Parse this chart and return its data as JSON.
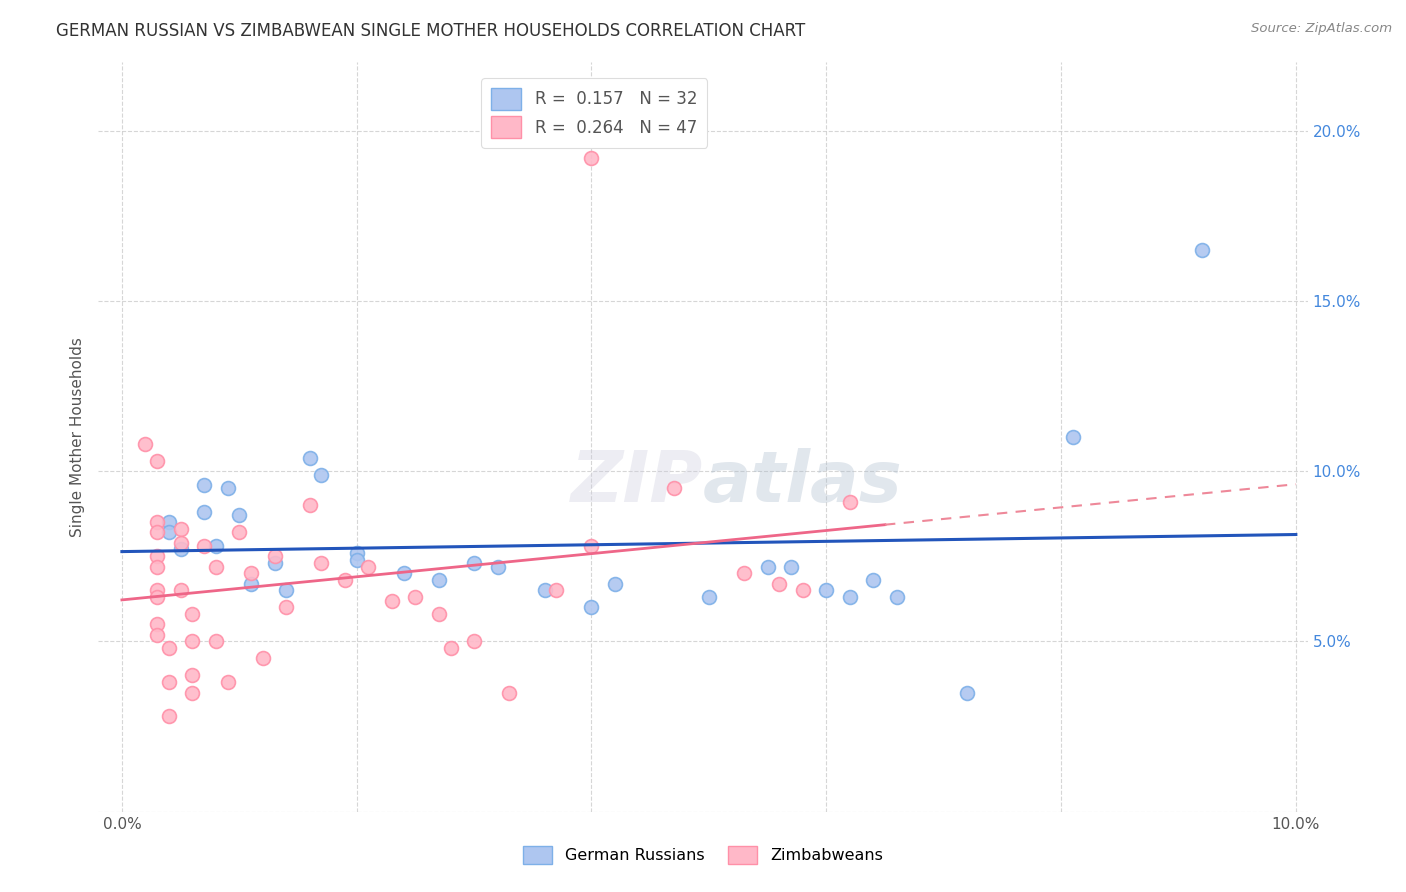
{
  "title": "GERMAN RUSSIAN VS ZIMBABWEAN SINGLE MOTHER HOUSEHOLDS CORRELATION CHART",
  "source": "Source: ZipAtlas.com",
  "ylabel": "Single Mother Households",
  "background_color": "#ffffff",
  "grid_color": "#cccccc",
  "watermark_text": "ZIPatlas",
  "blue_scatter_face": "#AEC6F0",
  "blue_scatter_edge": "#7EB0E8",
  "pink_scatter_face": "#FFB8C8",
  "pink_scatter_edge": "#FF90A8",
  "blue_line_color": "#2255BB",
  "pink_solid_color": "#EE6688",
  "pink_dash_color": "#EE8899",
  "legend_r_blue": "0.157",
  "legend_n_blue": "32",
  "legend_r_pink": "0.264",
  "legend_n_pink": "47",
  "blue_points": [
    [
      0.004,
      0.085
    ],
    [
      0.004,
      0.082
    ],
    [
      0.005,
      0.077
    ],
    [
      0.007,
      0.096
    ],
    [
      0.007,
      0.088
    ],
    [
      0.008,
      0.078
    ],
    [
      0.009,
      0.095
    ],
    [
      0.01,
      0.087
    ],
    [
      0.011,
      0.067
    ],
    [
      0.013,
      0.073
    ],
    [
      0.014,
      0.065
    ],
    [
      0.016,
      0.104
    ],
    [
      0.017,
      0.099
    ],
    [
      0.02,
      0.076
    ],
    [
      0.02,
      0.074
    ],
    [
      0.024,
      0.07
    ],
    [
      0.027,
      0.068
    ],
    [
      0.03,
      0.073
    ],
    [
      0.032,
      0.072
    ],
    [
      0.036,
      0.065
    ],
    [
      0.04,
      0.06
    ],
    [
      0.042,
      0.067
    ],
    [
      0.05,
      0.063
    ],
    [
      0.055,
      0.072
    ],
    [
      0.057,
      0.072
    ],
    [
      0.06,
      0.065
    ],
    [
      0.062,
      0.063
    ],
    [
      0.064,
      0.068
    ],
    [
      0.066,
      0.063
    ],
    [
      0.072,
      0.035
    ],
    [
      0.081,
      0.11
    ],
    [
      0.092,
      0.165
    ]
  ],
  "pink_points": [
    [
      0.002,
      0.108
    ],
    [
      0.003,
      0.103
    ],
    [
      0.003,
      0.085
    ],
    [
      0.003,
      0.082
    ],
    [
      0.003,
      0.075
    ],
    [
      0.003,
      0.072
    ],
    [
      0.003,
      0.065
    ],
    [
      0.003,
      0.063
    ],
    [
      0.003,
      0.055
    ],
    [
      0.003,
      0.052
    ],
    [
      0.004,
      0.048
    ],
    [
      0.004,
      0.038
    ],
    [
      0.004,
      0.028
    ],
    [
      0.005,
      0.083
    ],
    [
      0.005,
      0.079
    ],
    [
      0.005,
      0.065
    ],
    [
      0.006,
      0.058
    ],
    [
      0.006,
      0.05
    ],
    [
      0.006,
      0.04
    ],
    [
      0.006,
      0.035
    ],
    [
      0.007,
      0.078
    ],
    [
      0.008,
      0.072
    ],
    [
      0.008,
      0.05
    ],
    [
      0.009,
      0.038
    ],
    [
      0.01,
      0.082
    ],
    [
      0.011,
      0.07
    ],
    [
      0.012,
      0.045
    ],
    [
      0.013,
      0.075
    ],
    [
      0.014,
      0.06
    ],
    [
      0.016,
      0.09
    ],
    [
      0.017,
      0.073
    ],
    [
      0.019,
      0.068
    ],
    [
      0.021,
      0.072
    ],
    [
      0.023,
      0.062
    ],
    [
      0.025,
      0.063
    ],
    [
      0.027,
      0.058
    ],
    [
      0.028,
      0.048
    ],
    [
      0.03,
      0.05
    ],
    [
      0.033,
      0.035
    ],
    [
      0.037,
      0.065
    ],
    [
      0.04,
      0.078
    ],
    [
      0.047,
      0.095
    ],
    [
      0.053,
      0.07
    ],
    [
      0.056,
      0.067
    ],
    [
      0.058,
      0.065
    ],
    [
      0.04,
      0.192
    ],
    [
      0.062,
      0.091
    ]
  ],
  "xmin": 0.0,
  "xmax": 0.1,
  "ymin": 0.0,
  "ymax": 0.22,
  "xtick_positions": [
    0.0,
    0.02,
    0.04,
    0.06,
    0.08,
    0.1
  ],
  "xtick_labels": [
    "0.0%",
    "",
    "",
    "",
    "",
    "10.0%"
  ],
  "ytick_positions": [
    0.0,
    0.05,
    0.1,
    0.15,
    0.2
  ],
  "ytick_labels_right": [
    "",
    "5.0%",
    "10.0%",
    "15.0%",
    "20.0%"
  ]
}
